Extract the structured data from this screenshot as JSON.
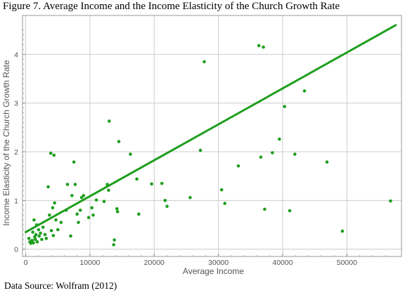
{
  "figure": {
    "title": "Figure 7.  Average Income and the Income Elasticity of the Church Growth Rate",
    "source": "Data Source: Wolfram (2012)"
  },
  "chart_data": {
    "type": "scatter",
    "title": "Figure 7.  Average Income and the Income Elasticity of the Church Growth Rate",
    "xlabel": "Average Income",
    "ylabel": "Income Elasticity of the Church Growth Rate",
    "xlim": [
      -500,
      58500
    ],
    "ylim": [
      -0.15,
      4.8
    ],
    "x_ticks": [
      0,
      10000,
      20000,
      30000,
      40000,
      50000
    ],
    "x_tick_labels": [
      "0",
      "10000",
      "20000",
      "30000",
      "40000",
      "50000"
    ],
    "y_ticks": [
      0,
      1,
      2,
      3,
      4
    ],
    "y_tick_labels": [
      "0",
      "1",
      "2",
      "3",
      "4"
    ],
    "grid": true,
    "colors": {
      "series": "#1e9e1e",
      "grid": "#cccccc",
      "frame": "#999999"
    },
    "series": [
      {
        "points": [
          [
            500,
            0.22
          ],
          [
            650,
            0.15
          ],
          [
            800,
            0.12
          ],
          [
            1000,
            0.18
          ],
          [
            1100,
            0.35
          ],
          [
            1200,
            0.13
          ],
          [
            1300,
            0.6
          ],
          [
            1400,
            0.25
          ],
          [
            1500,
            0.2
          ],
          [
            1600,
            0.3
          ],
          [
            1700,
            0.5
          ],
          [
            1800,
            0.15
          ],
          [
            2000,
            0.4
          ],
          [
            2100,
            0.27
          ],
          [
            2300,
            0.33
          ],
          [
            2500,
            0.2
          ],
          [
            2700,
            0.45
          ],
          [
            3000,
            0.3
          ],
          [
            3200,
            0.22
          ],
          [
            3500,
            1.28
          ],
          [
            3700,
            0.7
          ],
          [
            3900,
            1.97
          ],
          [
            4000,
            0.38
          ],
          [
            4200,
            0.85
          ],
          [
            4300,
            0.28
          ],
          [
            4400,
            1.93
          ],
          [
            4500,
            0.95
          ],
          [
            4700,
            0.6
          ],
          [
            5000,
            0.4
          ],
          [
            5500,
            0.55
          ],
          [
            6300,
            0.8
          ],
          [
            6500,
            1.33
          ],
          [
            7000,
            0.27
          ],
          [
            7200,
            1.1
          ],
          [
            7500,
            1.79
          ],
          [
            7700,
            1.33
          ],
          [
            8000,
            0.72
          ],
          [
            8200,
            0.55
          ],
          [
            8500,
            0.8
          ],
          [
            8700,
            1.06
          ],
          [
            9000,
            1.1
          ],
          [
            9800,
            0.65
          ],
          [
            10300,
            0.85
          ],
          [
            10500,
            0.7
          ],
          [
            11000,
            1.01
          ],
          [
            12200,
            0.98
          ],
          [
            12700,
            1.33
          ],
          [
            12900,
            1.21
          ],
          [
            13000,
            2.63
          ],
          [
            13700,
            0.09
          ],
          [
            13800,
            0.19
          ],
          [
            14200,
            0.83
          ],
          [
            14300,
            0.77
          ],
          [
            14500,
            2.21
          ],
          [
            16300,
            1.95
          ],
          [
            17300,
            1.44
          ],
          [
            17600,
            0.72
          ],
          [
            19600,
            1.34
          ],
          [
            21200,
            1.35
          ],
          [
            21700,
            1.0
          ],
          [
            22000,
            0.88
          ],
          [
            25600,
            1.06
          ],
          [
            27200,
            2.03
          ],
          [
            27800,
            3.85
          ],
          [
            30500,
            1.22
          ],
          [
            31000,
            0.94
          ],
          [
            33100,
            1.71
          ],
          [
            36300,
            4.18
          ],
          [
            36600,
            1.89
          ],
          [
            37000,
            4.15
          ],
          [
            37200,
            0.82
          ],
          [
            38400,
            1.98
          ],
          [
            39500,
            2.26
          ],
          [
            40300,
            2.93
          ],
          [
            41100,
            0.79
          ],
          [
            41900,
            1.95
          ],
          [
            43400,
            3.25
          ],
          [
            46900,
            1.79
          ],
          [
            49300,
            0.37
          ],
          [
            56800,
            0.99
          ]
        ]
      },
      {
        "type": "line",
        "points": [
          [
            0,
            0.35
          ],
          [
            57600,
            4.6
          ]
        ]
      }
    ]
  }
}
